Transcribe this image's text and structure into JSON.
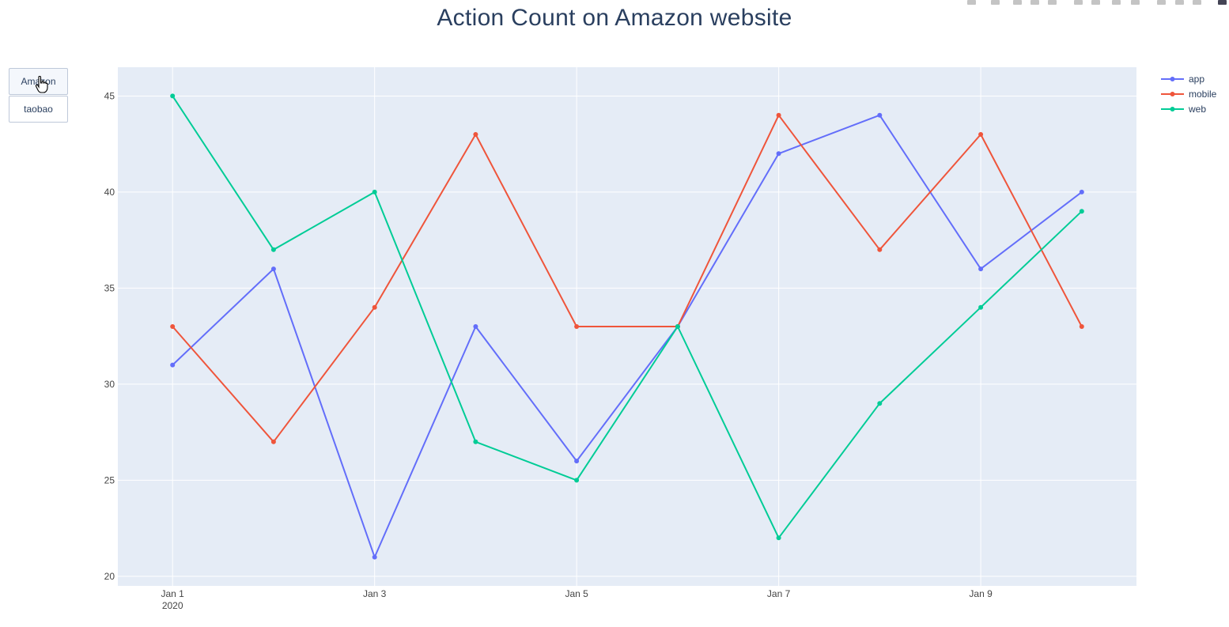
{
  "page_title": "Action Count on Amazon website",
  "buttons": [
    {
      "label": "Amazon",
      "active": true
    },
    {
      "label": "taobao",
      "active": false
    }
  ],
  "colors": {
    "plot_bg": "#e5ecf6",
    "grid": "#ffffff",
    "app": "#636efa",
    "mobile": "#ef553b",
    "web": "#00cc96"
  },
  "chart_data": {
    "type": "line",
    "title": "Action Count on Amazon website",
    "x": [
      "2020-01-01",
      "2020-01-02",
      "2020-01-03",
      "2020-01-04",
      "2020-01-05",
      "2020-01-06",
      "2020-01-07",
      "2020-01-08",
      "2020-01-09",
      "2020-01-10"
    ],
    "x_ticks": [
      {
        "date": "2020-01-01",
        "label": "Jan 1",
        "sublabel": "2020"
      },
      {
        "date": "2020-01-03",
        "label": "Jan 3",
        "sublabel": ""
      },
      {
        "date": "2020-01-05",
        "label": "Jan 5",
        "sublabel": ""
      },
      {
        "date": "2020-01-07",
        "label": "Jan 7",
        "sublabel": ""
      },
      {
        "date": "2020-01-09",
        "label": "Jan 9",
        "sublabel": ""
      }
    ],
    "y_ticks": [
      20,
      25,
      30,
      35,
      40,
      45
    ],
    "ylim": [
      19.5,
      46.5
    ],
    "xlim": [
      "2019-12-31T11:00",
      "2020-01-10T13:00"
    ],
    "series": [
      {
        "name": "app",
        "color": "#636efa",
        "values": [
          31,
          36,
          21,
          33,
          26,
          33,
          42,
          44,
          36,
          40
        ]
      },
      {
        "name": "mobile",
        "color": "#ef553b",
        "values": [
          33,
          27,
          34,
          43,
          33,
          33,
          44,
          37,
          43,
          33
        ]
      },
      {
        "name": "web",
        "color": "#00cc96",
        "values": [
          45,
          37,
          40,
          27,
          25,
          33,
          22,
          29,
          34,
          39
        ]
      }
    ],
    "grid": true,
    "legend_position": "top-right",
    "xlabel": "",
    "ylabel": ""
  }
}
